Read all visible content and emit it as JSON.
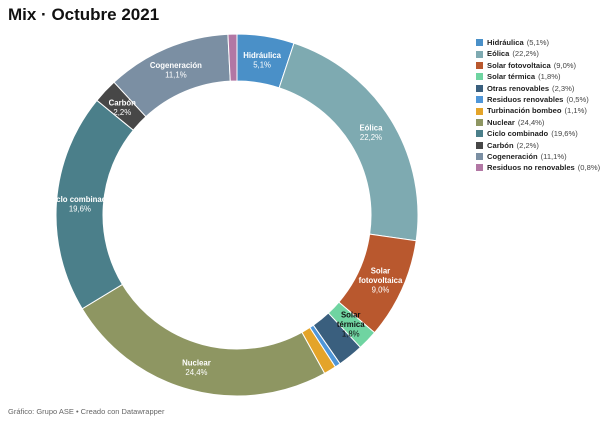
{
  "title": "Mix · Octubre 2021",
  "source": "Gráfico: Grupo ASE • Creado con Datawrapper",
  "chart_data": {
    "type": "pie",
    "style": "donut",
    "series": [
      {
        "name": "Hidráulica",
        "value": 5.1,
        "value_label": "5,1%",
        "color": "#4a90c8"
      },
      {
        "name": "Eólica",
        "value": 22.2,
        "value_label": "22,2%",
        "color": "#7eaab1"
      },
      {
        "name": "Solar fotovoltaica",
        "value": 9.0,
        "value_label": "9,0%",
        "color": "#b9582e"
      },
      {
        "name": "Solar térmica",
        "value": 1.8,
        "value_label": "1,8%",
        "color": "#6fd4a1"
      },
      {
        "name": "Otras renovables",
        "value": 2.3,
        "value_label": "2,3%",
        "color": "#3a5f7e"
      },
      {
        "name": "Residuos renovables",
        "value": 0.5,
        "value_label": "0,5%",
        "color": "#4f96d8"
      },
      {
        "name": "Turbinación bombeo",
        "value": 1.1,
        "value_label": "1,1%",
        "color": "#e4a429"
      },
      {
        "name": "Nuclear",
        "value": 24.4,
        "value_label": "24,4%",
        "color": "#8e9662"
      },
      {
        "name": "Ciclo combinado",
        "value": 19.6,
        "value_label": "19,6%",
        "color": "#4b7f8a"
      },
      {
        "name": "Carbón",
        "value": 2.2,
        "value_label": "2,2%",
        "color": "#474747"
      },
      {
        "name": "Cogeneración",
        "value": 11.1,
        "value_label": "11,1%",
        "color": "#7b8fa3"
      },
      {
        "name": "Residuos no renovables",
        "value": 0.8,
        "value_label": "0,8%",
        "color": "#b277a4"
      }
    ],
    "slice_labels": [
      {
        "series": "Hidráulica",
        "lines": [
          "Hidráulica"
        ],
        "value": "5,1%",
        "text_color": "#ffffff"
      },
      {
        "series": "Eólica",
        "lines": [
          "Eólica"
        ],
        "value": "22,2%",
        "text_color": "#ffffff"
      },
      {
        "series": "Solar fotovoltaica",
        "lines": [
          "Solar",
          "fotovoltaica"
        ],
        "value": "9,0%",
        "text_color": "#ffffff"
      },
      {
        "series": "Solar térmica",
        "lines": [
          "Solar",
          "térmica"
        ],
        "value": "1,8%",
        "text_color": "#111111"
      },
      {
        "series": "Nuclear",
        "lines": [
          "Nuclear"
        ],
        "value": "24,4%",
        "text_color": "#ffffff"
      },
      {
        "series": "Ciclo combinado",
        "lines": [
          "Ciclo combinado"
        ],
        "value": "19,6%",
        "text_color": "#ffffff"
      },
      {
        "series": "Carbón",
        "lines": [
          "Carbón"
        ],
        "value": "2,2%",
        "text_color": "#ffffff"
      },
      {
        "series": "Cogeneración",
        "lines": [
          "Cogeneración"
        ],
        "value": "11,1%",
        "text_color": "#ffffff"
      }
    ],
    "legend_position": "right"
  }
}
